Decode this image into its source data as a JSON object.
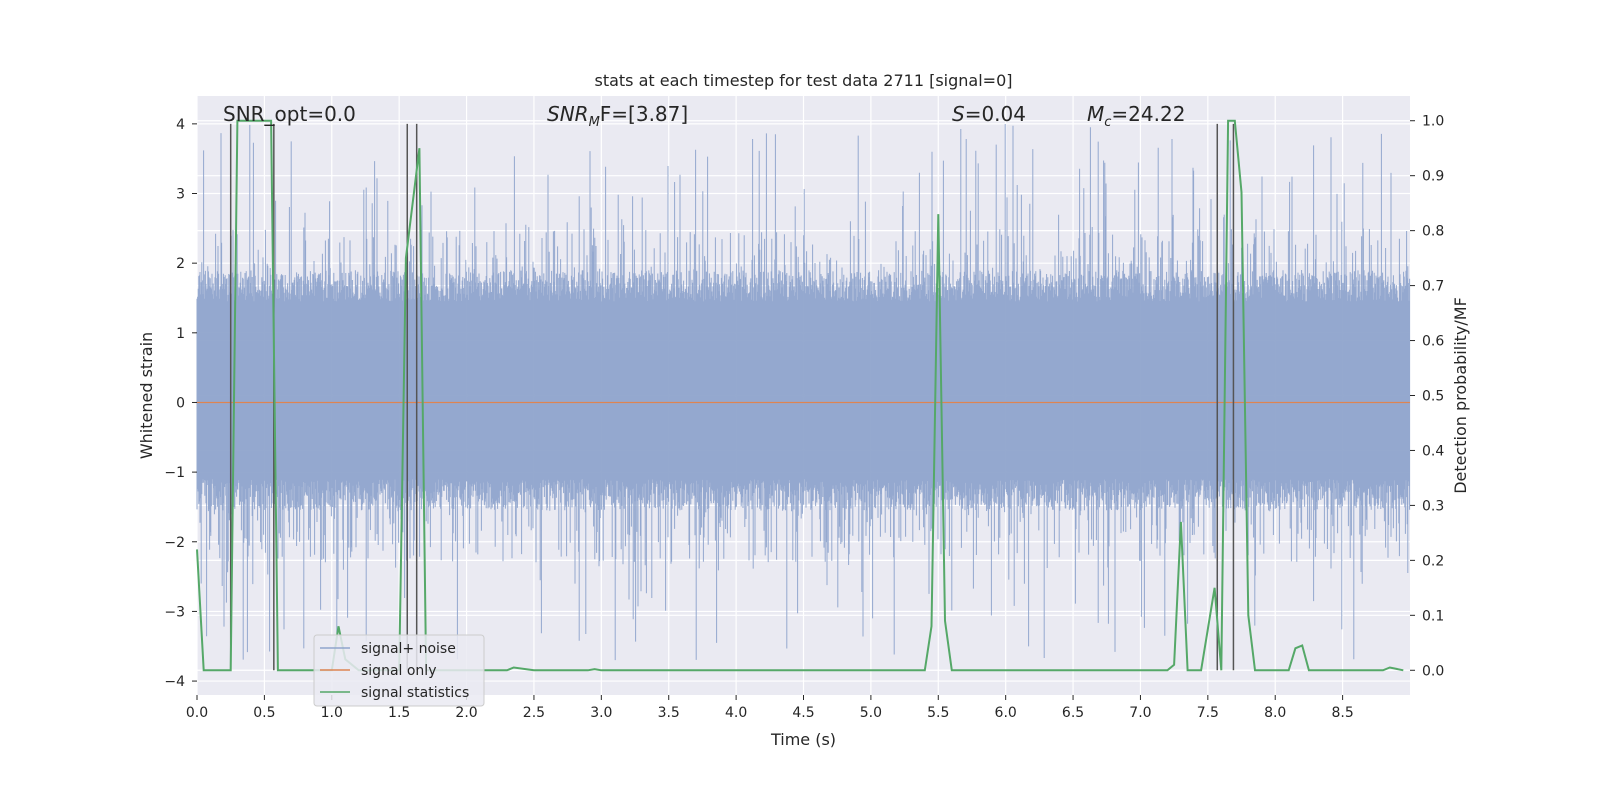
{
  "chart_data": {
    "type": "line",
    "title": "stats at each timestep for test data 2711 [signal=0]",
    "xlabel": "Time (s)",
    "ylabel": "Whitened strain",
    "ylabel_right": "Detection probability/MF",
    "xlim": [
      0.0,
      9.0
    ],
    "ylim": [
      -4.2,
      4.4
    ],
    "ylim_right": [
      -0.045,
      1.045
    ],
    "x_ticks": [
      "0.0",
      "0.5",
      "1.0",
      "1.5",
      "2.0",
      "2.5",
      "3.0",
      "3.5",
      "4.0",
      "4.5",
      "5.0",
      "5.5",
      "6.0",
      "6.5",
      "7.0",
      "7.5",
      "8.0",
      "8.5"
    ],
    "y_ticks": [
      "4",
      "3",
      "2",
      "1",
      "0",
      "−1",
      "−2",
      "−3",
      "−4"
    ],
    "y_ticks_right": [
      "1.0",
      "0.9",
      "0.8",
      "0.7",
      "0.6",
      "0.5",
      "0.4",
      "0.3",
      "0.2",
      "0.1",
      "0.0"
    ],
    "grid": true,
    "legend_position": "lower-left",
    "annotations": [
      {
        "id": "snr-opt",
        "base": "SNR_opt=0.0",
        "sub": "",
        "rest": ""
      },
      {
        "id": "snr-mf",
        "base": "SNR",
        "sub": "M",
        "rest": "F=[3.87]"
      },
      {
        "id": "s-val",
        "base": "S",
        "sub": "",
        "rest": "=0.04"
      },
      {
        "id": "mc-val",
        "base": "M",
        "sub": "c",
        "rest": "=24.22"
      }
    ],
    "colors": {
      "background": "#eaeaf2",
      "grid": "#ffffff",
      "noise": "#8fa4cc",
      "signal": "#dd8452",
      "stats": "#55a868",
      "markers": "#555555"
    },
    "series": [
      {
        "name": "signal+ noise",
        "axis": "left",
        "description_band": {
          "core_low": -1.4,
          "core_high": 1.7,
          "spike_low_min": -3.7,
          "spike_high_max": 4.0
        }
      },
      {
        "name": "signal only",
        "axis": "left",
        "x": [
          0.0,
          9.0
        ],
        "y": [
          0.0,
          0.0
        ]
      },
      {
        "name": "signal statistics",
        "axis": "right",
        "x": [
          0.0,
          0.05,
          0.15,
          0.25,
          0.3,
          0.35,
          0.45,
          0.55,
          0.6,
          0.75,
          1.0,
          1.05,
          1.1,
          1.2,
          1.4,
          1.5,
          1.55,
          1.65,
          1.7,
          1.8,
          2.0,
          2.2,
          2.3,
          2.35,
          2.5,
          2.9,
          2.95,
          3.0,
          3.5,
          4.0,
          4.5,
          5.0,
          5.4,
          5.45,
          5.5,
          5.55,
          5.6,
          5.7,
          6.0,
          6.5,
          7.0,
          7.2,
          7.25,
          7.3,
          7.35,
          7.45,
          7.55,
          7.6,
          7.65,
          7.7,
          7.75,
          7.8,
          7.85,
          8.0,
          8.1,
          8.15,
          8.2,
          8.25,
          8.3,
          8.5,
          8.8,
          8.85,
          8.95
        ],
        "y": [
          0.22,
          0.0,
          0.0,
          0.0,
          1.0,
          1.0,
          1.0,
          1.0,
          0.0,
          0.0,
          0.0,
          0.08,
          0.02,
          0.0,
          0.0,
          0.0,
          0.75,
          0.95,
          0.0,
          0.0,
          0.0,
          0.0,
          0.0,
          0.005,
          0.0,
          0.0,
          0.002,
          0.0,
          0.0,
          0.0,
          0.0,
          0.0,
          0.0,
          0.08,
          0.83,
          0.09,
          0.0,
          0.0,
          0.0,
          0.0,
          0.0,
          0.0,
          0.01,
          0.27,
          0.0,
          0.0,
          0.15,
          0.0,
          1.0,
          1.0,
          0.87,
          0.1,
          0.0,
          0.0,
          0.0,
          0.04,
          0.045,
          0.0,
          0.0,
          0.0,
          0.0,
          0.005,
          0.0
        ]
      }
    ],
    "vertical_markers": [
      0.25,
      0.57,
      1.56,
      1.63,
      7.57,
      7.69
    ]
  }
}
